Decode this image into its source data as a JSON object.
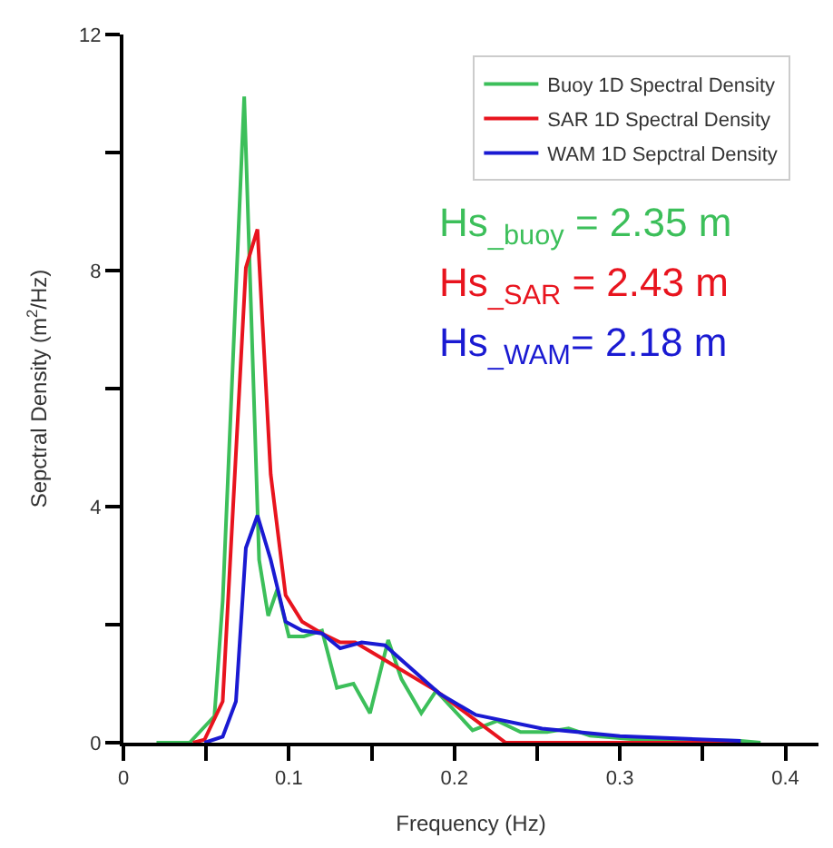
{
  "chart_data": {
    "type": "line",
    "xlabel": "Frequency (Hz)",
    "ylabel": "Sepctral Density (m$^{2}$/Hz)",
    "xlim": [
      0,
      0.42
    ],
    "ylim": [
      0,
      12
    ],
    "xticks": [
      0,
      {
        "value": 0.05,
        "label": null
      },
      0.1,
      {
        "value": 0.15,
        "label": null
      },
      0.2,
      {
        "value": 0.25,
        "label": null
      },
      0.3,
      {
        "value": 0.35,
        "label": null
      },
      0.4
    ],
    "yticks": [
      0,
      {
        "value": 2,
        "label": null
      },
      4,
      {
        "value": 6,
        "label": null
      },
      8,
      {
        "value": 10,
        "label": null
      },
      12
    ],
    "legend": "top right",
    "marker": "none",
    "line_style": "solid",
    "series": [
      {
        "name": "Buoy 1D Spectral Density",
        "color": "#3cbf5a",
        "x": [
          0.02,
          0.04,
          0.055,
          0.06,
          0.073,
          0.082,
          0.0875,
          0.093,
          0.1,
          0.109,
          0.12,
          0.129,
          0.139,
          0.149,
          0.16,
          0.168,
          0.18,
          0.189,
          0.211,
          0.226,
          0.24,
          0.256,
          0.269,
          0.282,
          0.307,
          0.373,
          0.385
        ],
        "values": [
          0,
          0,
          0.45,
          2.4,
          10.95,
          3.1,
          2.15,
          2.6,
          1.8,
          1.8,
          1.9,
          0.93,
          1.0,
          0.5,
          1.74,
          1.08,
          0.5,
          0.88,
          0.21,
          0.37,
          0.18,
          0.18,
          0.24,
          0.12,
          0.06,
          0.03,
          0
        ]
      },
      {
        "name": "SAR 1D Spectral Density",
        "color": "#e8141e",
        "x": [
          0.042,
          0.049,
          0.06,
          0.074,
          0.081,
          0.089,
          0.098,
          0.108,
          0.12,
          0.131,
          0.14,
          0.158,
          0.189,
          0.231,
          0.373
        ],
        "values": [
          0,
          0.05,
          0.7,
          8.05,
          8.7,
          4.55,
          2.5,
          2.05,
          1.85,
          1.7,
          1.7,
          1.4,
          0.88,
          0,
          0
        ]
      },
      {
        "name": "WAM 1D Sepctral Density",
        "color": "#1a1ad2",
        "x": [
          0.049,
          0.06,
          0.068,
          0.074,
          0.081,
          0.089,
          0.098,
          0.108,
          0.12,
          0.131,
          0.144,
          0.158,
          0.191,
          0.213,
          0.253,
          0.3,
          0.373
        ],
        "values": [
          0,
          0.1,
          0.7,
          3.3,
          3.85,
          3.1,
          2.05,
          1.9,
          1.85,
          1.6,
          1.7,
          1.65,
          0.83,
          0.47,
          0.24,
          0.11,
          0.03
        ]
      }
    ],
    "annotations": [
      "Hs$_{_buoy}$ = 2.35 m",
      "Hs$_{_SAR}$ = 2.43 m",
      "Hs$_{_WAM}$= 2.18 m"
    ]
  }
}
